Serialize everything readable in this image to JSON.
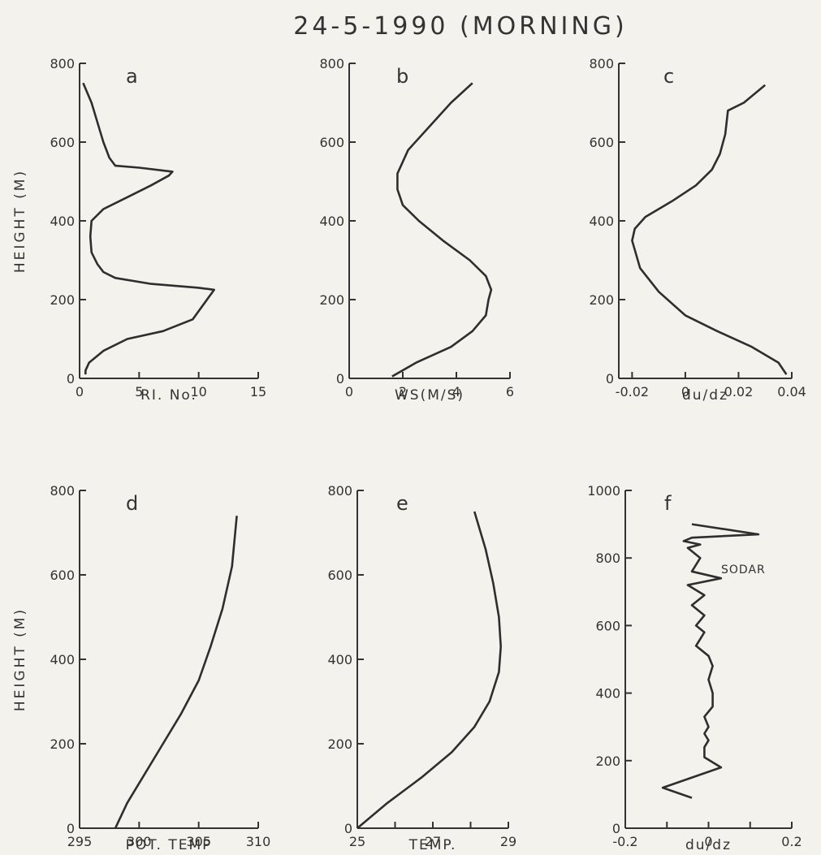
{
  "title": "24-5-1990 (MORNING)",
  "chart_data": [
    {
      "type": "line",
      "panel_label": "a",
      "xlabel": "RI. No.",
      "ylabel": "HEIGHT (M)",
      "xlim": [
        0,
        15
      ],
      "ylim": [
        0,
        800
      ],
      "xticks": [
        0,
        5,
        10,
        15
      ],
      "xtick_labels": [
        "0",
        "5",
        "10",
        "15"
      ],
      "yticks": [
        0,
        200,
        400,
        600,
        800
      ],
      "ytick_labels": [
        "0",
        "200",
        "400",
        "600",
        "800"
      ],
      "x": [
        0.5,
        0.5,
        0.8,
        2,
        4,
        7,
        9.5,
        11.3,
        10,
        6,
        3,
        2,
        1.5,
        1,
        0.9,
        1,
        2,
        4,
        6,
        7.5,
        7.8,
        5,
        3,
        2.5,
        2,
        1,
        0.3
      ],
      "y": [
        10,
        20,
        40,
        70,
        100,
        120,
        150,
        225,
        230,
        240,
        255,
        270,
        290,
        320,
        360,
        400,
        430,
        460,
        490,
        515,
        525,
        535,
        540,
        560,
        600,
        700,
        750
      ]
    },
    {
      "type": "line",
      "panel_label": "b",
      "xlabel": "WS(M/S)",
      "ylabel": "",
      "xlim": [
        0,
        6
      ],
      "ylim": [
        0,
        800
      ],
      "xticks": [
        0,
        2,
        4,
        6
      ],
      "xtick_labels": [
        "0",
        "2",
        "4",
        "6"
      ],
      "yticks": [
        0,
        200,
        400,
        600,
        800
      ],
      "ytick_labels": [
        "0",
        "200",
        "400",
        "600",
        "800"
      ],
      "x": [
        1.6,
        2.5,
        3.8,
        4.6,
        5.1,
        5.2,
        5.3,
        5.1,
        4.5,
        3.5,
        2.6,
        2.0,
        1.8,
        1.8,
        2.2,
        3.0,
        3.8,
        4.6
      ],
      "y": [
        5,
        40,
        80,
        120,
        160,
        200,
        225,
        260,
        300,
        350,
        400,
        440,
        480,
        520,
        580,
        640,
        700,
        750
      ]
    },
    {
      "type": "line",
      "panel_label": "c",
      "xlabel": "du/dz",
      "ylabel": "",
      "xlim": [
        -0.025,
        0.04
      ],
      "ylim": [
        0,
        800
      ],
      "xticks": [
        -0.02,
        0,
        0.02,
        0.04
      ],
      "xtick_labels": [
        "-0.02",
        "0",
        "0.02",
        "0.04"
      ],
      "yticks": [
        0,
        200,
        400,
        600,
        800
      ],
      "ytick_labels": [
        "0",
        "200",
        "400",
        "600",
        "800"
      ],
      "x": [
        0.038,
        0.035,
        0.025,
        0.012,
        0,
        -0.01,
        -0.017,
        -0.02,
        -0.019,
        -0.015,
        -0.005,
        0.004,
        0.01,
        0.013,
        0.015,
        0.016,
        0.022,
        0.03
      ],
      "y": [
        10,
        40,
        80,
        120,
        160,
        220,
        280,
        350,
        380,
        410,
        450,
        490,
        530,
        570,
        620,
        680,
        700,
        745
      ]
    },
    {
      "type": "line",
      "panel_label": "d",
      "xlabel": "POT. TEMP",
      "ylabel": "HEIGHT (M)",
      "xlim": [
        295,
        310
      ],
      "ylim": [
        0,
        800
      ],
      "xticks": [
        295,
        300,
        305,
        310
      ],
      "xtick_labels": [
        "295",
        "300",
        "305",
        "310"
      ],
      "yticks": [
        0,
        200,
        400,
        600,
        800
      ],
      "ytick_labels": [
        "0",
        "200",
        "400",
        "600",
        "800"
      ],
      "x": [
        298,
        299,
        300.5,
        302,
        303.5,
        305,
        306,
        307,
        307.8,
        308.2
      ],
      "y": [
        0,
        60,
        130,
        200,
        270,
        350,
        430,
        520,
        620,
        740
      ]
    },
    {
      "type": "line",
      "panel_label": "e",
      "xlabel": "TEMP.",
      "ylabel": "",
      "xlim": [
        25,
        29
      ],
      "ylim": [
        0,
        800
      ],
      "xticks": [
        25,
        26,
        27,
        28,
        29
      ],
      "xtick_labels": [
        "25",
        "",
        "27",
        "",
        "29"
      ],
      "yticks": [
        0,
        200,
        400,
        600,
        800
      ],
      "ytick_labels": [
        "0",
        "200",
        "400",
        "600",
        "800"
      ],
      "x": [
        25,
        25.8,
        26.7,
        27.5,
        28.1,
        28.5,
        28.75,
        28.8,
        28.75,
        28.6,
        28.4,
        28.1
      ],
      "y": [
        0,
        60,
        120,
        180,
        240,
        300,
        370,
        430,
        500,
        580,
        660,
        750
      ]
    },
    {
      "type": "line",
      "panel_label": "f",
      "xlabel": "du/dz",
      "ylabel": "",
      "annotation": "SODAR",
      "xlim": [
        -0.2,
        0.2
      ],
      "ylim": [
        0,
        1000
      ],
      "xticks": [
        -0.2,
        -0.1,
        0,
        0.1,
        0.2
      ],
      "xtick_labels": [
        "-0.2",
        "",
        "0",
        "",
        "0.2"
      ],
      "yticks": [
        0,
        200,
        400,
        600,
        800,
        1000
      ],
      "ytick_labels": [
        "0",
        "200",
        "400",
        "600",
        "800",
        "1000"
      ],
      "x": [
        -0.04,
        -0.11,
        0.03,
        -0.01,
        -0.01,
        0.0,
        -0.01,
        0.0,
        -0.01,
        0.01,
        0.01,
        0.0,
        0.01,
        0.0,
        -0.03,
        -0.01,
        -0.03,
        -0.01,
        -0.04,
        -0.01,
        -0.05,
        0.03,
        -0.04,
        -0.02,
        -0.05,
        -0.02,
        -0.06,
        -0.04,
        0.12,
        -0.04
      ],
      "y": [
        90,
        120,
        180,
        210,
        240,
        260,
        280,
        300,
        330,
        360,
        400,
        440,
        480,
        510,
        540,
        580,
        600,
        630,
        660,
        690,
        720,
        740,
        760,
        800,
        830,
        840,
        850,
        860,
        870,
        900
      ]
    }
  ]
}
